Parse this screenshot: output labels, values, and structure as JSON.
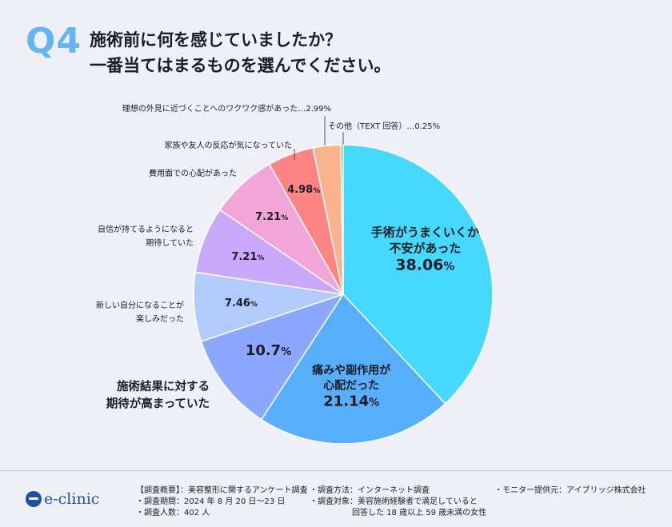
{
  "header": {
    "q_label": "Q4",
    "title_line1": "施術前に何を感じていましたか？",
    "title_line2": "一番当てはまるものを選んでください。"
  },
  "chart_data": {
    "type": "pie",
    "slices": [
      {
        "label": "手術がうまくいくか不安があった",
        "value": 38.06,
        "display": "38.06",
        "color": "#44d9fd"
      },
      {
        "label": "痛みや副作用が心配だった",
        "value": 21.14,
        "display": "21.14",
        "color": "#57aefb"
      },
      {
        "label": "施術結果に対する期待が高まっていた",
        "value": 10.7,
        "display": "10.7",
        "color": "#8ca8fe"
      },
      {
        "label": "新しい自分になることが楽しみだった",
        "value": 7.46,
        "display": "7.46",
        "color": "#b3cafd"
      },
      {
        "label": "自信が持てるようになると期待していた",
        "value": 7.21,
        "display": "7.21",
        "color": "#caa9fc"
      },
      {
        "label": "費用面での心配があった",
        "value": 7.21,
        "display": "7.21",
        "color": "#f1a5d8"
      },
      {
        "label": "家族や友人の反応が気になっていた",
        "value": 4.98,
        "display": "4.98",
        "color": "#ff8585"
      },
      {
        "label": "理想の外見に近づくことへのワクワク感があった",
        "value": 2.99,
        "display": "2.99%",
        "color": "#fdb28e"
      },
      {
        "label": "その他（TEXT 回答）",
        "value": 0.25,
        "display": "0.25%",
        "color": "#57c26a"
      }
    ],
    "percent_sign": "%",
    "outside_labels": [
      {
        "slice": 7,
        "text": "理想の外見に近づくことへのワクワク感があった…2.99%"
      },
      {
        "slice": 8,
        "text": "その他（TEXT 回答）…0.25%"
      },
      {
        "slice": 6,
        "text": "家族や友人の反応が気になっていた"
      },
      {
        "slice": 5,
        "text": "費用面での心配があった"
      },
      {
        "slice": 4,
        "lines": [
          "自信が持てるようになると",
          "期待していた"
        ]
      },
      {
        "slice": 3,
        "lines": [
          "新しい自分になることが",
          "楽しみだった"
        ]
      },
      {
        "slice": 2,
        "lines": [
          "施術結果に対する",
          "期待が高まっていた"
        ]
      }
    ],
    "inside_labels": [
      {
        "slice": 0,
        "lines": [
          "手術がうまくいくか",
          "不安があった"
        ],
        "value": "38.06"
      },
      {
        "slice": 1,
        "lines": [
          "痛みや副作用が",
          "心配だった"
        ],
        "value": "21.14"
      },
      {
        "slice": 2,
        "value": "10.7"
      },
      {
        "slice": 3,
        "value": "7.46"
      },
      {
        "slice": 4,
        "value": "7.21"
      },
      {
        "slice": 5,
        "value": "7.21"
      },
      {
        "slice": 6,
        "value": "4.98"
      }
    ]
  },
  "footer": {
    "logo_text": "e-clinic",
    "overview": "【調査概要】：美容整形に関するアンケート調査",
    "period": "・調査期間：2024 年 8 月 20 日〜23 日",
    "count": "・調査人数：402 人",
    "method": "・調査方法：インターネット調査",
    "target_line1": "・調査対象：美容施術経験者で満足していると",
    "target_line2": "回答した 18 歳以上 59 歳未満の女性",
    "monitor": "・モニター提供元：アイブリッジ株式会社"
  }
}
